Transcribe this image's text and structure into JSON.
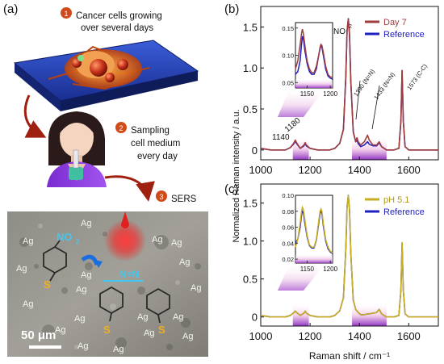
{
  "left": {
    "panel_label": "(a)",
    "steps": [
      {
        "num": "1",
        "text_lines": [
          "Cancer cells growing",
          "over several days"
        ]
      },
      {
        "num": "2",
        "text_lines": [
          "Sampling",
          "cell medium",
          "every day"
        ]
      },
      {
        "num": "3",
        "text_lines": [
          "SERS"
        ]
      }
    ],
    "micrograph": {
      "ag_label": "Ag",
      "no2_label": "NO",
      "no2_sub": "2",
      "azo_label": "N=N",
      "s_label": "S",
      "scale_bar": "50 μm"
    }
  },
  "chart_data": [
    {
      "type": "line",
      "panel": "(b)",
      "xlabel": "",
      "ylabel": "Normalized Raman intensity / a.u.",
      "xlim": [
        1000,
        1720
      ],
      "ylim": [
        -0.12,
        1.75
      ],
      "xticks": [
        1000,
        1200,
        1400,
        1600
      ],
      "yticks": [
        0,
        0.5,
        1.0,
        1.5
      ],
      "ytick_labels": [
        "0",
        "0.5",
        "1.0",
        "1.5"
      ],
      "legend_position": "top-right",
      "shaded_regions": [
        [
          1130,
          1195
        ],
        [
          1370,
          1510
        ]
      ],
      "series": [
        {
          "name": "Day 7",
          "color": "#A03C3C",
          "x": [
            1000,
            1040,
            1080,
            1100,
            1120,
            1135,
            1140,
            1145,
            1160,
            1175,
            1180,
            1185,
            1200,
            1230,
            1260,
            1280,
            1300,
            1320,
            1335,
            1345,
            1350,
            1355,
            1360,
            1365,
            1375,
            1385,
            1390,
            1395,
            1405,
            1420,
            1433,
            1440,
            1455,
            1470,
            1480,
            1490,
            1510,
            1540,
            1560,
            1568,
            1573,
            1578,
            1585,
            1600,
            1640,
            1680,
            1720
          ],
          "y": [
            0.02,
            0.0,
            0.0,
            0.0,
            0.03,
            0.09,
            0.12,
            0.09,
            0.02,
            0.06,
            0.09,
            0.06,
            0.02,
            0.0,
            0.0,
            0.0,
            0.02,
            0.08,
            0.25,
            0.9,
            1.45,
            1.6,
            1.4,
            0.85,
            0.22,
            0.1,
            0.15,
            0.1,
            0.06,
            0.1,
            0.18,
            0.12,
            0.06,
            0.06,
            0.1,
            0.04,
            0.0,
            0.0,
            0.02,
            0.35,
            0.97,
            0.35,
            0.04,
            0.0,
            0.0,
            0.0,
            0.0
          ]
        },
        {
          "name": "Reference",
          "color": "#2020C0",
          "x": [
            1000,
            1040,
            1080,
            1100,
            1120,
            1135,
            1140,
            1145,
            1160,
            1175,
            1180,
            1185,
            1200,
            1230,
            1260,
            1280,
            1300,
            1320,
            1335,
            1345,
            1350,
            1355,
            1360,
            1365,
            1375,
            1385,
            1390,
            1395,
            1405,
            1420,
            1433,
            1440,
            1455,
            1470,
            1480,
            1490,
            1510,
            1540,
            1560,
            1568,
            1573,
            1578,
            1585,
            1600,
            1640,
            1680,
            1720
          ],
          "y": [
            0.02,
            0.0,
            0.0,
            0.0,
            0.03,
            0.08,
            0.11,
            0.08,
            0.02,
            0.05,
            0.08,
            0.05,
            0.02,
            0.0,
            0.0,
            0.0,
            0.02,
            0.08,
            0.25,
            0.9,
            1.45,
            1.6,
            1.4,
            0.85,
            0.22,
            0.1,
            0.12,
            0.08,
            0.04,
            0.06,
            0.1,
            0.07,
            0.05,
            0.05,
            0.09,
            0.04,
            0.0,
            0.0,
            0.02,
            0.35,
            0.97,
            0.35,
            0.04,
            0.0,
            0.0,
            0.0,
            0.0
          ]
        }
      ],
      "annotations": [
        "NO",
        "2",
        "1390 (N=N)",
        "1433 (N=N)",
        "1573 (C-C)",
        "1140",
        "1180"
      ],
      "inset": {
        "xlim": [
          1125,
          1205
        ],
        "ylim": [
          0.04,
          0.16
        ],
        "xticks": [
          1150,
          1200
        ],
        "yticks": [
          0.05,
          0.1,
          0.15
        ],
        "ytick_labels": [
          "0.05",
          "0.10",
          "0.15"
        ],
        "series": [
          {
            "color": "#A03C3C",
            "x": [
              1125,
              1130,
              1135,
              1138,
              1140,
              1142,
              1145,
              1150,
              1155,
              1160,
              1165,
              1170,
              1175,
              1178,
              1180,
              1182,
              1185,
              1190,
              1195,
              1200,
              1205
            ],
            "y": [
              0.075,
              0.09,
              0.12,
              0.14,
              0.148,
              0.14,
              0.12,
              0.09,
              0.075,
              0.068,
              0.068,
              0.08,
              0.1,
              0.115,
              0.12,
              0.118,
              0.105,
              0.08,
              0.065,
              0.06,
              0.06
            ]
          },
          {
            "color": "#2020C0",
            "x": [
              1125,
              1130,
              1135,
              1138,
              1140,
              1142,
              1145,
              1150,
              1155,
              1160,
              1165,
              1170,
              1175,
              1178,
              1180,
              1182,
              1185,
              1190,
              1195,
              1200,
              1205
            ],
            "y": [
              0.065,
              0.07,
              0.09,
              0.12,
              0.135,
              0.13,
              0.11,
              0.085,
              0.07,
              0.065,
              0.065,
              0.075,
              0.1,
              0.112,
              0.118,
              0.115,
              0.1,
              0.075,
              0.062,
              0.058,
              0.056
            ]
          }
        ]
      }
    },
    {
      "type": "line",
      "panel": "(c)",
      "xlabel": "Raman shift / cm⁻¹",
      "ylabel": "Normalized Raman intensity / a.u.",
      "xlim": [
        1000,
        1720
      ],
      "ylim": [
        -0.12,
        1.75
      ],
      "xticks": [
        1000,
        1200,
        1400,
        1600
      ],
      "yticks": [
        0,
        0.5,
        1.0,
        1.5
      ],
      "ytick_labels": [
        "0",
        "0.5",
        "1.0",
        "1.5"
      ],
      "legend_position": "top-right",
      "shaded_regions": [
        [
          1130,
          1195
        ],
        [
          1370,
          1510
        ]
      ],
      "series": [
        {
          "name": "pH 5.1",
          "color": "#C8AE20",
          "x": [
            1000,
            1040,
            1080,
            1100,
            1120,
            1135,
            1140,
            1145,
            1160,
            1175,
            1180,
            1185,
            1200,
            1230,
            1260,
            1280,
            1300,
            1320,
            1335,
            1345,
            1350,
            1355,
            1360,
            1365,
            1375,
            1385,
            1390,
            1395,
            1405,
            1420,
            1433,
            1440,
            1455,
            1470,
            1480,
            1490,
            1510,
            1540,
            1560,
            1568,
            1573,
            1578,
            1585,
            1600,
            1640,
            1680,
            1720
          ],
          "y": [
            0.02,
            0.0,
            0.0,
            0.0,
            0.02,
            0.06,
            0.08,
            0.06,
            0.02,
            0.05,
            0.08,
            0.05,
            0.02,
            0.0,
            0.0,
            0.0,
            0.02,
            0.08,
            0.25,
            0.9,
            1.45,
            1.6,
            1.4,
            0.85,
            0.22,
            0.1,
            0.08,
            0.06,
            0.03,
            0.03,
            0.04,
            0.04,
            0.05,
            0.06,
            0.1,
            0.04,
            0.0,
            0.0,
            0.02,
            0.35,
            0.98,
            0.35,
            0.04,
            0.0,
            0.0,
            0.0,
            0.0
          ]
        },
        {
          "name": "Reference",
          "color": "#2020C0",
          "x": [
            1000,
            1040,
            1080,
            1100,
            1120,
            1135,
            1140,
            1145,
            1160,
            1175,
            1180,
            1185,
            1200,
            1230,
            1260,
            1280,
            1300,
            1320,
            1335,
            1345,
            1350,
            1355,
            1360,
            1365,
            1375,
            1385,
            1390,
            1395,
            1405,
            1420,
            1433,
            1440,
            1455,
            1470,
            1480,
            1490,
            1510,
            1540,
            1560,
            1568,
            1573,
            1578,
            1585,
            1600,
            1640,
            1680,
            1720
          ],
          "y": [
            0.02,
            0.0,
            0.0,
            0.0,
            0.02,
            0.06,
            0.075,
            0.06,
            0.02,
            0.05,
            0.075,
            0.05,
            0.02,
            0.0,
            0.0,
            0.0,
            0.02,
            0.08,
            0.25,
            0.9,
            1.45,
            1.6,
            1.4,
            0.85,
            0.22,
            0.1,
            0.08,
            0.06,
            0.03,
            0.03,
            0.04,
            0.04,
            0.05,
            0.06,
            0.1,
            0.04,
            0.0,
            0.0,
            0.02,
            0.35,
            0.97,
            0.35,
            0.04,
            0.0,
            0.0,
            0.0,
            0.0
          ]
        }
      ],
      "inset": {
        "xlim": [
          1125,
          1205
        ],
        "ylim": [
          0.015,
          0.1
        ],
        "xticks": [
          1150,
          1200
        ],
        "yticks": [
          0.02,
          0.04,
          0.06,
          0.08,
          0.1
        ],
        "ytick_labels": [
          "0.02",
          "0.04",
          "0.06",
          "0.08",
          "0.10"
        ],
        "series": [
          {
            "color": "#C8AE20",
            "x": [
              1125,
              1130,
              1135,
              1138,
              1140,
              1142,
              1145,
              1150,
              1155,
              1160,
              1165,
              1170,
              1175,
              1178,
              1180,
              1182,
              1185,
              1190,
              1195,
              1200,
              1205
            ],
            "y": [
              0.035,
              0.045,
              0.065,
              0.08,
              0.085,
              0.082,
              0.07,
              0.05,
              0.038,
              0.035,
              0.035,
              0.045,
              0.068,
              0.08,
              0.083,
              0.08,
              0.065,
              0.045,
              0.035,
              0.03,
              0.028
            ]
          },
          {
            "color": "#2020C0",
            "x": [
              1125,
              1130,
              1135,
              1138,
              1140,
              1142,
              1145,
              1150,
              1155,
              1160,
              1165,
              1170,
              1175,
              1178,
              1180,
              1182,
              1185,
              1190,
              1195,
              1200,
              1205
            ],
            "y": [
              0.04,
              0.045,
              0.06,
              0.075,
              0.08,
              0.078,
              0.066,
              0.048,
              0.037,
              0.034,
              0.034,
              0.044,
              0.065,
              0.077,
              0.08,
              0.077,
              0.062,
              0.043,
              0.033,
              0.029,
              0.027
            ]
          }
        ]
      }
    }
  ]
}
